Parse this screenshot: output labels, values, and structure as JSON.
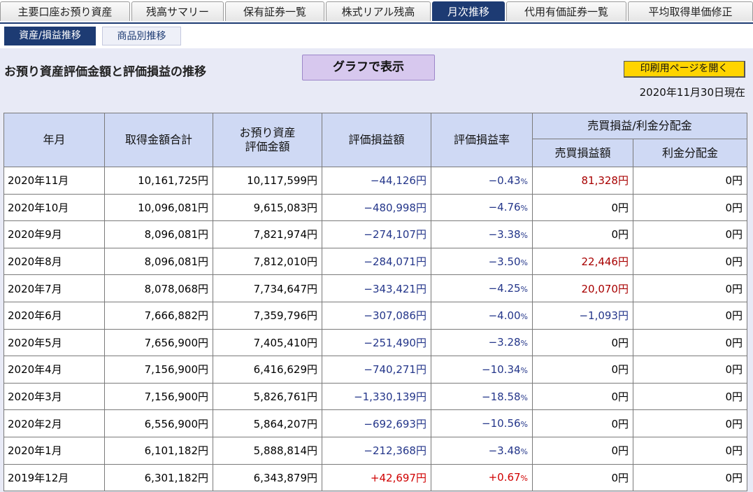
{
  "nav": {
    "tabs": [
      {
        "label": "主要口座お預り資産",
        "active": false
      },
      {
        "label": "残高サマリー",
        "active": false
      },
      {
        "label": "保有証券一覧",
        "active": false
      },
      {
        "label": "株式リアル残高",
        "active": false
      },
      {
        "label": "月次推移",
        "active": true
      },
      {
        "label": "代用有価証券一覧",
        "active": false
      },
      {
        "label": "平均取得単価修正",
        "active": false
      }
    ]
  },
  "subnav": {
    "tabs": [
      {
        "label": "資産/損益推移",
        "active": true
      },
      {
        "label": "商品別推移",
        "active": false
      }
    ]
  },
  "header": {
    "title": "お預り資産評価金額と評価損益の推移",
    "graph_button": "グラフで表示",
    "print_button": "印刷用ページを開く",
    "as_of": "2020年11月30日現在"
  },
  "table": {
    "headers": {
      "year_month": "年月",
      "acquisition_total": "取得金額合計",
      "assets_line1": "お預り資産",
      "assets_line2": "評価金額",
      "unrealized_amount": "評価損益額",
      "unrealized_rate": "評価損益率",
      "group": "売買損益/利金分配金",
      "trading_pl": "売買損益額",
      "interest": "利金分配金"
    },
    "rows": [
      {
        "ym": "2020年11月",
        "acq": "10,161,725",
        "assets": "10,117,599",
        "pl": "−44,126",
        "rate": "−0.43",
        "trade": "81,328",
        "interest": "0",
        "pl_dir": "neg",
        "trade_style": "red"
      },
      {
        "ym": "2020年10月",
        "acq": "10,096,081",
        "assets": "9,615,083",
        "pl": "−480,998",
        "rate": "−4.76",
        "trade": "0",
        "interest": "0",
        "pl_dir": "neg",
        "trade_style": "plain"
      },
      {
        "ym": "2020年9月",
        "acq": "8,096,081",
        "assets": "7,821,974",
        "pl": "−274,107",
        "rate": "−3.38",
        "trade": "0",
        "interest": "0",
        "pl_dir": "neg",
        "trade_style": "plain"
      },
      {
        "ym": "2020年8月",
        "acq": "8,096,081",
        "assets": "7,812,010",
        "pl": "−284,071",
        "rate": "−3.50",
        "trade": "22,446",
        "interest": "0",
        "pl_dir": "neg",
        "trade_style": "red"
      },
      {
        "ym": "2020年7月",
        "acq": "8,078,068",
        "assets": "7,734,647",
        "pl": "−343,421",
        "rate": "−4.25",
        "trade": "20,070",
        "interest": "0",
        "pl_dir": "neg",
        "trade_style": "red"
      },
      {
        "ym": "2020年6月",
        "acq": "7,666,882",
        "assets": "7,359,796",
        "pl": "−307,086",
        "rate": "−4.00",
        "trade": "−1,093",
        "interest": "0",
        "pl_dir": "neg",
        "trade_style": "neg"
      },
      {
        "ym": "2020年5月",
        "acq": "7,656,900",
        "assets": "7,405,410",
        "pl": "−251,490",
        "rate": "−3.28",
        "trade": "0",
        "interest": "0",
        "pl_dir": "neg",
        "trade_style": "plain"
      },
      {
        "ym": "2020年4月",
        "acq": "7,156,900",
        "assets": "6,416,629",
        "pl": "−740,271",
        "rate": "−10.34",
        "trade": "0",
        "interest": "0",
        "pl_dir": "neg",
        "trade_style": "plain"
      },
      {
        "ym": "2020年3月",
        "acq": "7,156,900",
        "assets": "5,826,761",
        "pl": "−1,330,139",
        "rate": "−18.58",
        "trade": "0",
        "interest": "0",
        "pl_dir": "neg",
        "trade_style": "plain"
      },
      {
        "ym": "2020年2月",
        "acq": "6,556,900",
        "assets": "5,864,207",
        "pl": "−692,693",
        "rate": "−10.56",
        "trade": "0",
        "interest": "0",
        "pl_dir": "neg",
        "trade_style": "plain"
      },
      {
        "ym": "2020年1月",
        "acq": "6,101,182",
        "assets": "5,888,814",
        "pl": "−212,368",
        "rate": "−3.48",
        "trade": "0",
        "interest": "0",
        "pl_dir": "neg",
        "trade_style": "plain"
      },
      {
        "ym": "2019年12月",
        "acq": "6,301,182",
        "assets": "6,343,879",
        "pl": "+42,697",
        "rate": "+0.67",
        "trade": "0",
        "interest": "0",
        "pl_dir": "pos",
        "trade_style": "plain"
      }
    ],
    "currency_unit": "円",
    "percent_unit": "%"
  },
  "colors": {
    "nav_active": "#1d3b73",
    "header_bg": "#cfd9f4",
    "negative": "#24368a",
    "positive": "#d00000",
    "profit": "#a80000",
    "print_button": "#ffd400",
    "graph_button": "#d7c8ee"
  }
}
